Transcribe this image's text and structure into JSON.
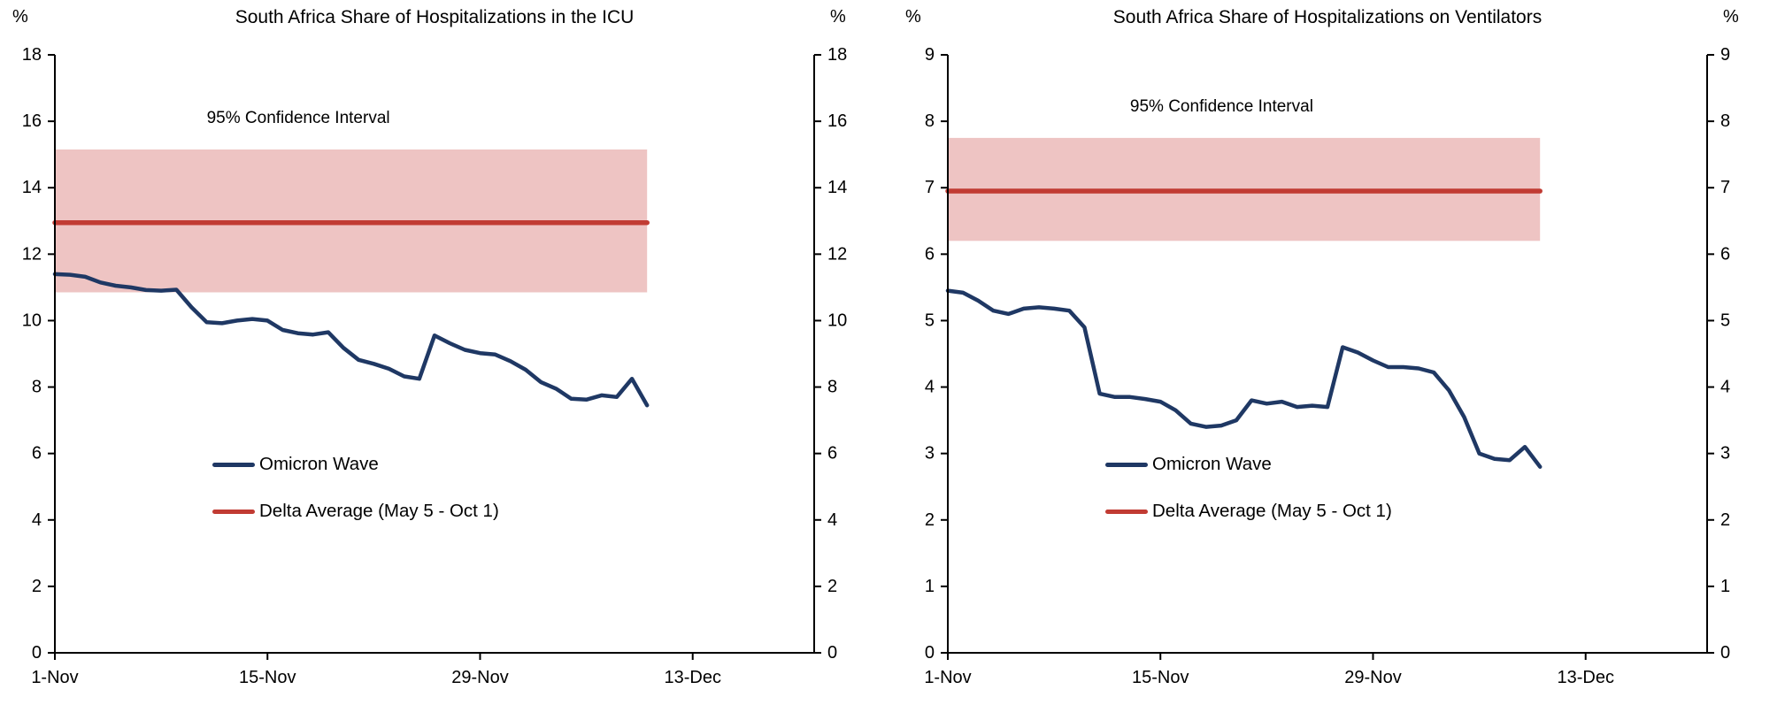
{
  "page": {
    "background": "#ffffff",
    "axis_color": "#000000"
  },
  "chart_data": [
    {
      "type": "line",
      "title": "South Africa Share of Hospitalizations in the ICU",
      "ylabel": "%",
      "ylim": [
        0,
        18
      ],
      "ytick_step": 2,
      "xlim_days": [
        0,
        50
      ],
      "xticks": [
        {
          "day": 0,
          "label": "1-Nov"
        },
        {
          "day": 14,
          "label": "15-Nov"
        },
        {
          "day": 28,
          "label": "29-Nov"
        },
        {
          "day": 42,
          "label": "13-Dec"
        }
      ],
      "grid": false,
      "legend_position": "inside-lower-left",
      "confidence_band": {
        "label": "95% Confidence Interval",
        "low": 10.85,
        "high": 15.15,
        "span_days": [
          0,
          39
        ],
        "label_day": 10,
        "color": "#eec4c3"
      },
      "series": [
        {
          "name": "Omicron Wave",
          "kind": "line",
          "color": "#1f3864",
          "start_day": 0,
          "values": [
            11.4,
            11.38,
            11.32,
            11.15,
            11.05,
            11.0,
            10.92,
            10.9,
            10.93,
            10.4,
            9.95,
            9.92,
            10.0,
            10.05,
            10.0,
            9.72,
            9.62,
            9.58,
            9.65,
            9.18,
            8.82,
            8.7,
            8.55,
            8.32,
            8.25,
            9.55,
            9.32,
            9.12,
            9.02,
            8.98,
            8.78,
            8.52,
            8.15,
            7.95,
            7.65,
            7.62,
            7.75,
            7.7,
            8.25,
            7.45
          ]
        },
        {
          "name": "Delta Average (May 5 - Oct 1)",
          "kind": "hline",
          "color": "#c13b33",
          "value": 12.95,
          "span_days": [
            0,
            39
          ]
        }
      ]
    },
    {
      "type": "line",
      "title": "South Africa Share of Hospitalizations on Ventilators",
      "ylabel": "%",
      "ylim": [
        0,
        9
      ],
      "ytick_step": 1,
      "xlim_days": [
        0,
        50
      ],
      "xticks": [
        {
          "day": 0,
          "label": "1-Nov"
        },
        {
          "day": 14,
          "label": "15-Nov"
        },
        {
          "day": 28,
          "label": "29-Nov"
        },
        {
          "day": 42,
          "label": "13-Dec"
        }
      ],
      "grid": false,
      "legend_position": "inside-lower-left",
      "confidence_band": {
        "label": "95% Confidence Interval",
        "low": 6.2,
        "high": 7.75,
        "span_days": [
          0,
          39
        ],
        "label_day": 12,
        "color": "#eec4c3"
      },
      "series": [
        {
          "name": "Omicron Wave",
          "kind": "line",
          "color": "#1f3864",
          "start_day": 0,
          "values": [
            5.45,
            5.42,
            5.3,
            5.15,
            5.1,
            5.18,
            5.2,
            5.18,
            5.15,
            4.9,
            3.9,
            3.85,
            3.85,
            3.82,
            3.78,
            3.65,
            3.45,
            3.4,
            3.42,
            3.5,
            3.8,
            3.75,
            3.78,
            3.7,
            3.72,
            3.7,
            4.6,
            4.52,
            4.4,
            4.3,
            4.3,
            4.28,
            4.22,
            3.95,
            3.55,
            3.0,
            2.92,
            2.9,
            3.1,
            2.8
          ]
        },
        {
          "name": "Delta Average (May 5 - Oct 1)",
          "kind": "hline",
          "color": "#c13b33",
          "value": 6.95,
          "span_days": [
            0,
            39
          ]
        }
      ]
    }
  ]
}
